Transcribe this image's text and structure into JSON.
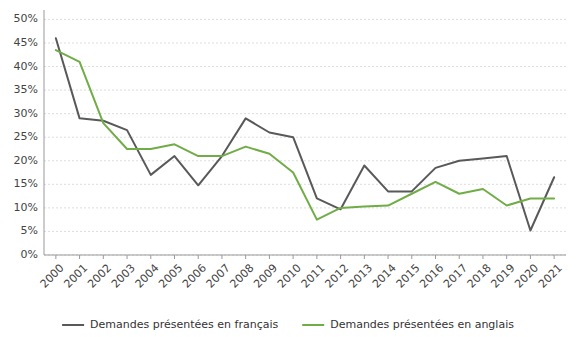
{
  "chart_data": {
    "type": "line",
    "x": [
      2000,
      2001,
      2002,
      2003,
      2004,
      2005,
      2006,
      2007,
      2008,
      2009,
      2010,
      2011,
      2012,
      2013,
      2014,
      2015,
      2016,
      2017,
      2018,
      2019,
      2020,
      2021
    ],
    "series": [
      {
        "name": "Demandes présentées en français",
        "color": "#595959",
        "values": [
          0.46,
          0.29,
          0.285,
          0.265,
          0.17,
          0.21,
          0.148,
          0.21,
          0.29,
          0.26,
          0.25,
          0.12,
          0.097,
          0.19,
          0.135,
          0.135,
          0.185,
          0.2,
          0.205,
          0.21,
          0.052,
          0.165
        ]
      },
      {
        "name": "Demandes présentées en anglais",
        "color": "#70ad47",
        "values": [
          0.435,
          0.41,
          0.28,
          0.225,
          0.225,
          0.235,
          0.21,
          0.21,
          0.23,
          0.215,
          0.175,
          0.075,
          0.1,
          0.103,
          0.105,
          0.13,
          0.155,
          0.13,
          0.14,
          0.105,
          0.12,
          0.12
        ]
      }
    ],
    "xlim": [
      1999.5,
      2021.5
    ],
    "xticks": [
      2000,
      2001,
      2002,
      2003,
      2004,
      2005,
      2006,
      2007,
      2008,
      2009,
      2010,
      2011,
      2012,
      2013,
      2014,
      2015,
      2016,
      2017,
      2018,
      2019,
      2020,
      2021
    ],
    "ylim": [
      0.0,
      0.52
    ],
    "yticks": [
      {
        "value": 0.0,
        "label": "0%"
      },
      {
        "value": 0.05,
        "label": "5%"
      },
      {
        "value": 0.1,
        "label": "10%"
      },
      {
        "value": 0.15,
        "label": "15%"
      },
      {
        "value": 0.2,
        "label": "20%"
      },
      {
        "value": 0.25,
        "label": "25%"
      },
      {
        "value": 0.3,
        "label": "30%"
      },
      {
        "value": 0.35,
        "label": "35%"
      },
      {
        "value": 0.4,
        "label": "40%"
      },
      {
        "value": 0.45,
        "label": "45%"
      },
      {
        "value": 0.5,
        "label": "50%"
      }
    ],
    "grid": true,
    "legend": "bottom"
  }
}
